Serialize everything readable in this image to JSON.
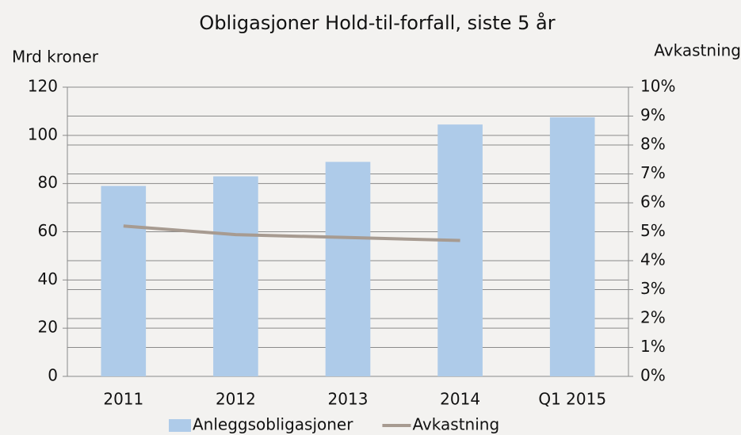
{
  "chart_data": {
    "type": "bar-line",
    "title": "Obligasjoner Hold-til-forfall, siste 5 år",
    "y_label": "Mrd kroner",
    "y2_label": "Avkastning",
    "categories": [
      "2011",
      "2012",
      "2013",
      "2014",
      "Q1 2015"
    ],
    "series": [
      {
        "name": "Anleggsobligasjoner",
        "type": "bar",
        "color": "#aecbe9",
        "values": [
          79,
          83,
          89,
          104.5,
          107.5
        ]
      },
      {
        "name": "Avkastning",
        "type": "line",
        "axis": "y2",
        "color": "#a79b91",
        "values": [
          5.2,
          4.9,
          4.8,
          4.7,
          null
        ]
      }
    ],
    "ylim": [
      0,
      120
    ],
    "yticks": [
      0,
      20,
      40,
      60,
      80,
      100,
      120
    ],
    "y2lim": [
      0,
      10
    ],
    "y2ticks": [
      {
        "value": 0,
        "label": "0%"
      },
      {
        "value": 1,
        "label": "1%"
      },
      {
        "value": 2,
        "label": "2%"
      },
      {
        "value": 3,
        "label": "3%"
      },
      {
        "value": 4,
        "label": "4%"
      },
      {
        "value": 5,
        "label": "5%"
      },
      {
        "value": 6,
        "label": "6%"
      },
      {
        "value": 7,
        "label": "7%"
      },
      {
        "value": 8,
        "label": "8%"
      },
      {
        "value": 9,
        "label": "9%"
      },
      {
        "value": 10,
        "label": "10%"
      }
    ],
    "grid": true,
    "legend": "bottom"
  }
}
